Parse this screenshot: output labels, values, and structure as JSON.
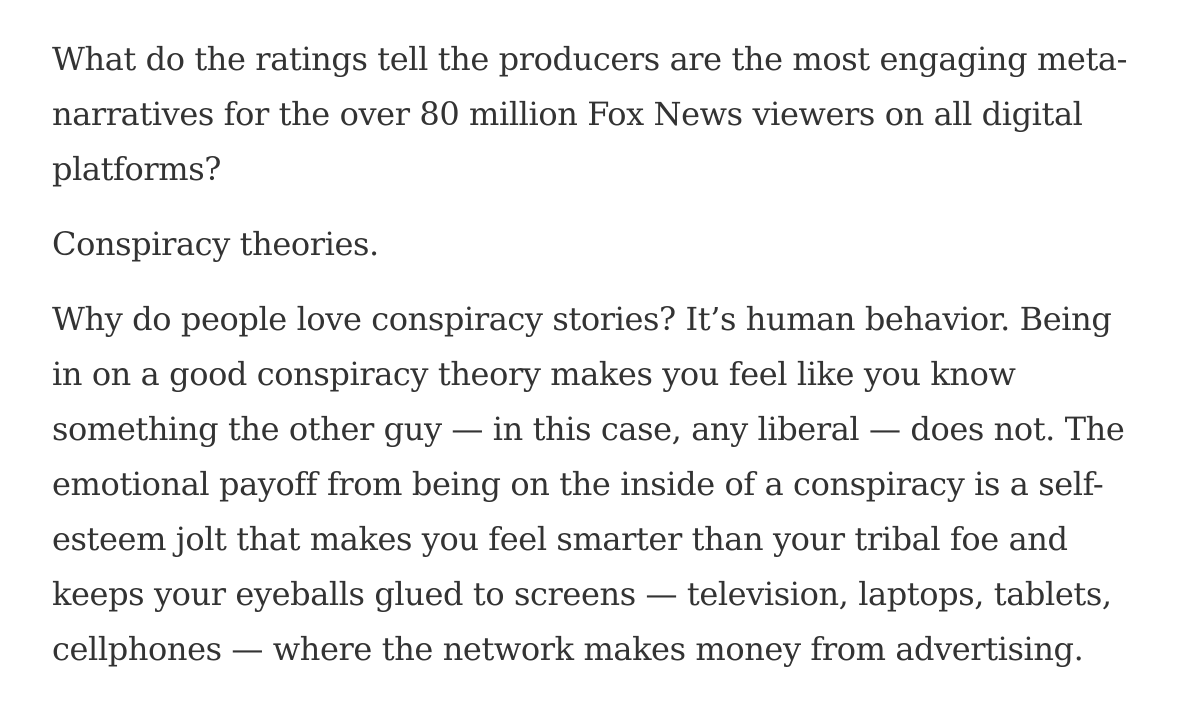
{
  "article": {
    "paragraphs": [
      {
        "lines": [
          "What do the ratings tell the producers are the most engaging meta-",
          "narratives for the over 80 million Fox News viewers on all digital",
          "platforms?"
        ]
      },
      {
        "lines": [
          "Conspiracy theories."
        ]
      },
      {
        "lines": [
          "Why do people love conspiracy stories? It’s human behavior. Being",
          "in on a good conspiracy theory makes you feel like you know",
          "something the other guy — in this case, any liberal — does not. The",
          "emotional payoff from being on the inside of a conspiracy is a self-",
          "esteem jolt that makes you feel smarter than your tribal foe and",
          "keeps your eyeballs glued to screens — television, laptops, tablets,",
          "cellphones — where the network makes money from advertising."
        ]
      }
    ]
  }
}
